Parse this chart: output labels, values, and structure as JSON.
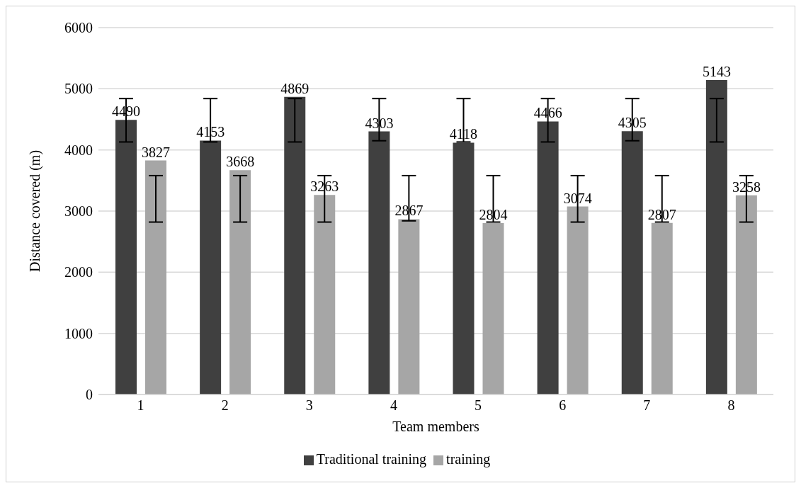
{
  "chart_data": {
    "type": "bar",
    "xlabel": "Team members",
    "ylabel": "Distance covered (m)",
    "categories": [
      "1",
      "2",
      "3",
      "4",
      "5",
      "6",
      "7",
      "8"
    ],
    "series": [
      {
        "name": "Traditional training",
        "color": "#404040",
        "values": [
          4490,
          4153,
          4869,
          4303,
          4118,
          4466,
          4305,
          5143
        ],
        "errors": [
          [
            4130,
            4840
          ],
          [
            4130,
            4840
          ],
          [
            4130,
            4840
          ],
          [
            4150,
            4840
          ],
          [
            4130,
            4840
          ],
          [
            4130,
            4840
          ],
          [
            4150,
            4840
          ],
          [
            4130,
            4840
          ]
        ]
      },
      {
        "name": "training",
        "color": "#a6a6a6",
        "values": [
          3827,
          3668,
          3263,
          2867,
          2804,
          3074,
          2807,
          3258
        ],
        "errors": [
          [
            2820,
            3580
          ],
          [
            2820,
            3580
          ],
          [
            2820,
            3580
          ],
          [
            2840,
            3580
          ],
          [
            2820,
            3580
          ],
          [
            2820,
            3580
          ],
          [
            2820,
            3580
          ],
          [
            2820,
            3580
          ]
        ]
      }
    ],
    "ylim": [
      0,
      6000
    ],
    "yticks": [
      0,
      1000,
      2000,
      3000,
      4000,
      5000,
      6000
    ],
    "grid": "y",
    "legend": "bottom",
    "data_labels": true
  }
}
